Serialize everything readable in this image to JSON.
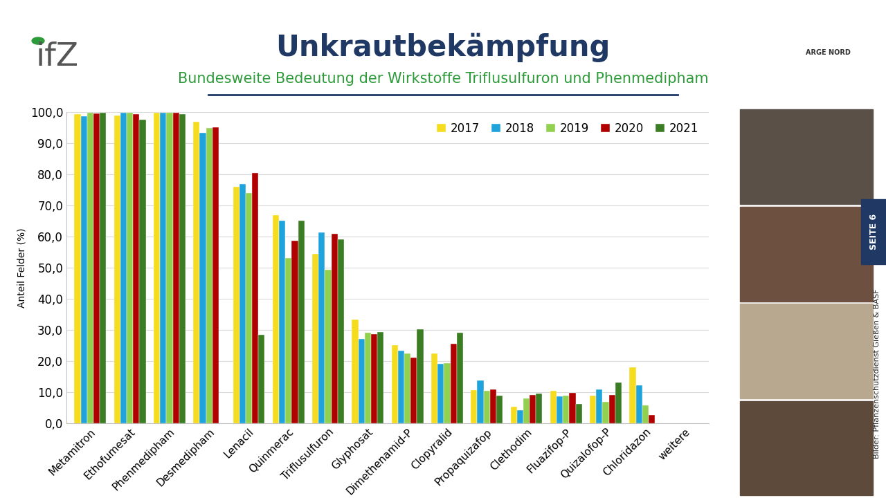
{
  "chart_data": {
    "type": "bar",
    "title": "Unkrautbekämpfung",
    "subtitle": "Bundesweite Bedeutung der Wirkstoffe Triflusulfuron und Phenmedipham",
    "y_label": "Anteil Felder (%)",
    "annotations": [
      "ifZ",
      "ARGE NORD",
      "SEITE 6",
      "Bilder: Pflanzenschutzdienst Gießen & BASF"
    ],
    "categories": [
      "Metamitron",
      "Ethofumesat",
      "Phenmedipham",
      "Desmedipham",
      "Lenacil",
      "Quinmerac",
      "Triflusulfuron",
      "Glyphosat",
      "Dimethenamid-P",
      "Clopyralid",
      "Propaquizafop",
      "Clethodim",
      "Fluazifop-P",
      "Quizalofop-P",
      "Chloridazon",
      "weitere"
    ],
    "series": [
      {
        "name": "2017",
        "color": "#F5DC1E",
        "values": [
          99.3,
          98.8,
          99.8,
          97.0,
          76.0,
          66.8,
          54.4,
          33.4,
          25.2,
          22.4,
          10.7,
          5.4,
          10.4,
          8.8,
          17.9,
          null
        ]
      },
      {
        "name": "2018",
        "color": "#1FA3DC",
        "values": [
          98.7,
          99.7,
          99.8,
          93.4,
          77.0,
          65.2,
          61.3,
          27.2,
          23.3,
          19.1,
          13.8,
          4.3,
          8.7,
          10.9,
          12.2,
          null
        ]
      },
      {
        "name": "2019",
        "color": "#92D050",
        "values": [
          99.7,
          99.7,
          99.8,
          95.0,
          74.0,
          53.1,
          49.3,
          29.1,
          22.5,
          19.3,
          10.5,
          8.0,
          8.9,
          7.0,
          5.7,
          null
        ]
      },
      {
        "name": "2020",
        "color": "#B00000",
        "values": [
          99.5,
          99.3,
          99.8,
          95.2,
          80.5,
          58.7,
          61.0,
          28.6,
          21.2,
          25.6,
          10.8,
          9.2,
          9.8,
          9.1,
          2.7,
          null
        ]
      },
      {
        "name": "2021",
        "color": "#3A7D22",
        "values": [
          99.8,
          97.6,
          99.3,
          null,
          28.4,
          65.2,
          59.2,
          29.3,
          30.3,
          29.1,
          8.8,
          9.6,
          6.2,
          13.2,
          null,
          null
        ]
      }
    ],
    "ylim": [
      0,
      100
    ],
    "yticks": [
      {
        "value": 0,
        "label": "0,0"
      },
      {
        "value": 10,
        "label": "10,0"
      },
      {
        "value": 20,
        "label": "20,0"
      },
      {
        "value": 30,
        "label": "30,0"
      },
      {
        "value": 40,
        "label": "40,0"
      },
      {
        "value": 50,
        "label": "50,0"
      },
      {
        "value": 60,
        "label": "60,0"
      },
      {
        "value": 70,
        "label": "70,0"
      },
      {
        "value": 80,
        "label": "80,0"
      },
      {
        "value": 90,
        "label": "90,0"
      },
      {
        "value": 100,
        "label": "100,0"
      }
    ],
    "grid": true,
    "legend": "upper right"
  }
}
